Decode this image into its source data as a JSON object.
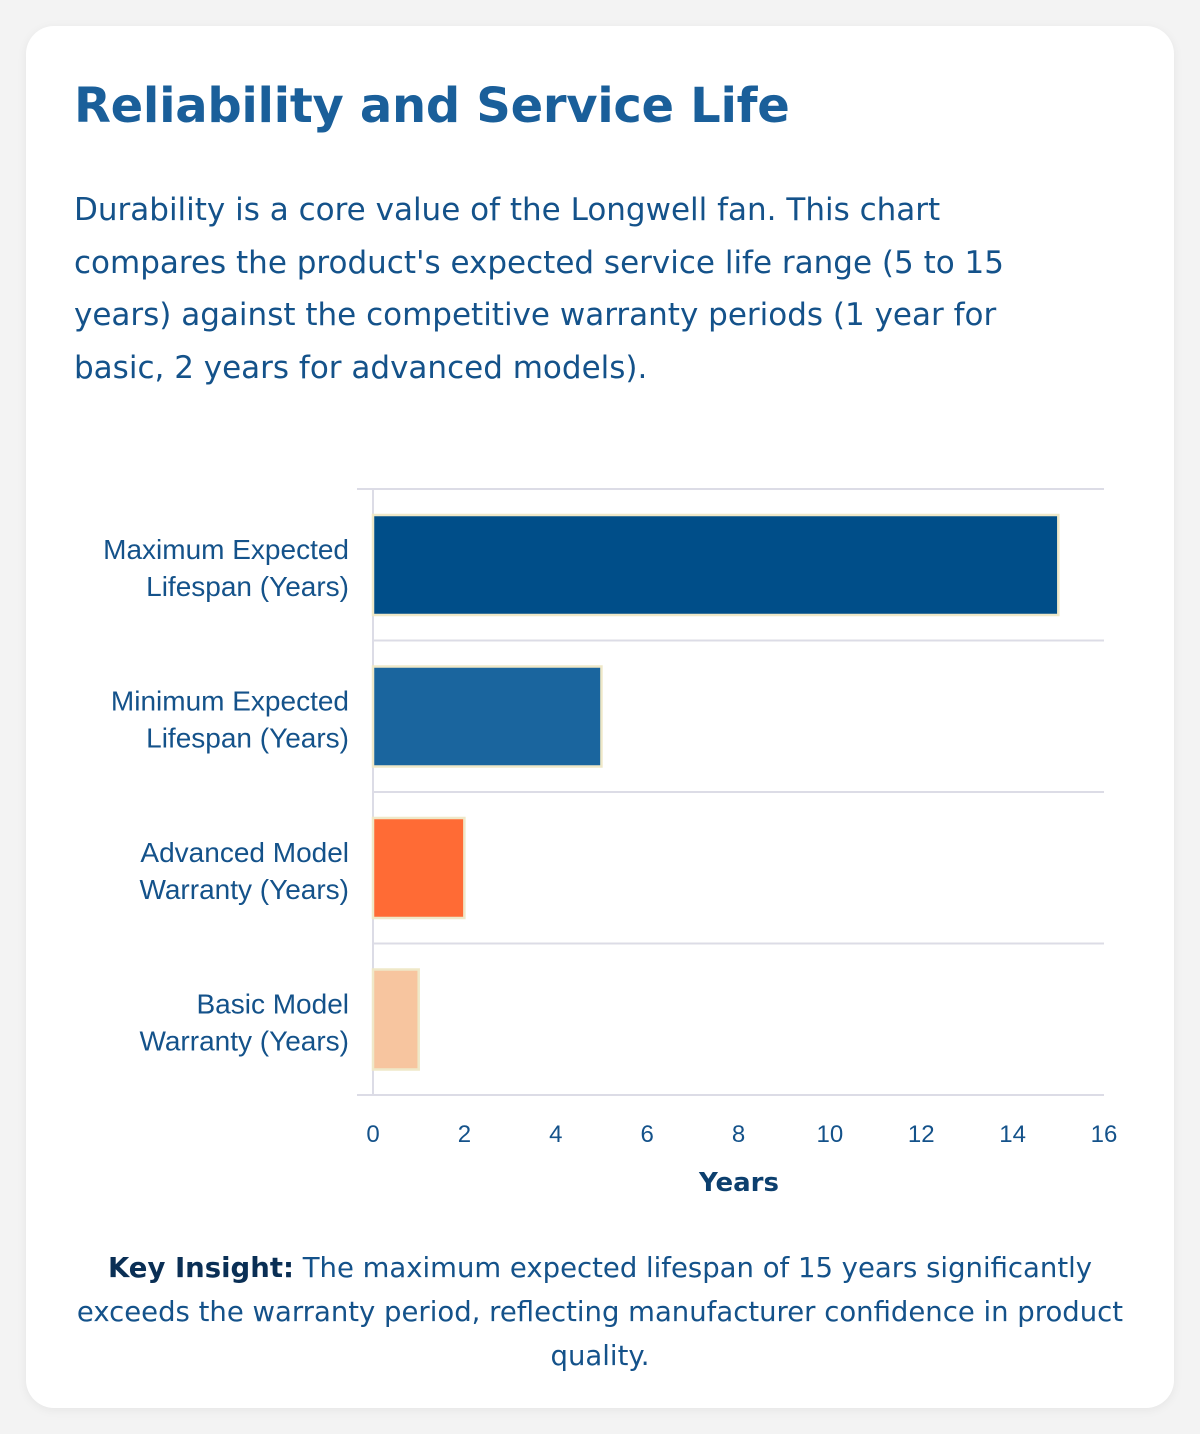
{
  "header": {
    "title": "Reliability and Service Life",
    "description": "Durability is a core value of the Longwell fan. This chart compares the product's expected service life range (5 to 15 years) against the competitive warranty periods (1 year for basic, 2 years for advanced models)."
  },
  "chart_data": {
    "type": "bar",
    "orientation": "horizontal",
    "categories": [
      [
        "Maximum Expected",
        "Lifespan (Years)"
      ],
      [
        "Minimum Expected",
        "Lifespan (Years)"
      ],
      [
        "Advanced Model",
        "Warranty (Years)"
      ],
      [
        "Basic Model",
        "Warranty (Years)"
      ]
    ],
    "values": [
      15,
      5,
      2,
      1
    ],
    "colors": [
      "#004e89",
      "#1a659e",
      "#ff6b35",
      "#f7c59f"
    ],
    "xlabel": "Years",
    "xlim": [
      0,
      16
    ],
    "xticks": [
      0,
      2,
      4,
      6,
      8,
      10,
      12,
      14,
      16
    ],
    "grid": true
  },
  "insight": {
    "label": "Key Insight:",
    "text": "The maximum expected lifespan of 15 years significantly exceeds the warranty period, reflecting manufacturer confidence in product quality."
  }
}
